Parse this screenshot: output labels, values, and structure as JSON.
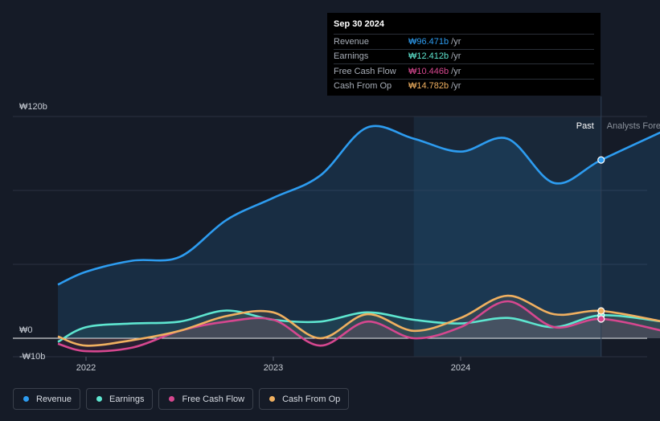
{
  "tooltip": {
    "date": "Sep 30 2024",
    "rows": [
      {
        "label": "Revenue",
        "value": "₩96.471b",
        "unit": "/yr",
        "color": "#2d9cf0"
      },
      {
        "label": "Earnings",
        "value": "₩12.412b",
        "unit": "/yr",
        "color": "#5ee6d0"
      },
      {
        "label": "Free Cash Flow",
        "value": "₩10.446b",
        "unit": "/yr",
        "color": "#d6478f"
      },
      {
        "label": "Cash From Op",
        "value": "₩14.782b",
        "unit": "/yr",
        "color": "#f0b060"
      }
    ]
  },
  "legend": [
    {
      "label": "Revenue",
      "color": "#2d9cf0"
    },
    {
      "label": "Earnings",
      "color": "#5ee6d0"
    },
    {
      "label": "Free Cash Flow",
      "color": "#d6478f"
    },
    {
      "label": "Cash From Op",
      "color": "#f0b060"
    }
  ],
  "chart_data": {
    "type": "line",
    "title": "",
    "xlabel": "",
    "ylabel": "",
    "y_unit": "KRW billions",
    "ylim": [
      -10,
      120
    ],
    "xlim": [
      2021.72,
      2025.08
    ],
    "y_tick_labels": [
      {
        "value": 120,
        "label": "₩120b"
      },
      {
        "value": 0,
        "label": "₩0"
      },
      {
        "value": -10,
        "label": "-₩10b"
      }
    ],
    "x_ticks": [
      {
        "value": 2022.0,
        "label": "2022"
      },
      {
        "value": 2023.0,
        "label": "2023"
      },
      {
        "value": 2024.0,
        "label": "2024"
      }
    ],
    "past_label": "Past",
    "forecast_label": "Analysts Forecasts",
    "highlight_start": 2023.75,
    "divider": 2024.75,
    "series": [
      {
        "name": "Revenue",
        "color": "#2d9cf0",
        "x": [
          2021.85,
          2022.0,
          2022.25,
          2022.5,
          2022.75,
          2023.0,
          2023.25,
          2023.5,
          2023.75,
          2024.0,
          2024.25,
          2024.5,
          2024.75,
          2025.08
        ],
        "y": [
          29,
          36,
          42,
          44,
          64,
          76,
          88,
          114,
          108,
          101,
          108,
          84,
          96.471,
          112
        ]
      },
      {
        "name": "Earnings",
        "color": "#5ee6d0",
        "x": [
          2021.85,
          2022.0,
          2022.25,
          2022.5,
          2022.75,
          2023.0,
          2023.25,
          2023.5,
          2023.75,
          2024.0,
          2024.25,
          2024.5,
          2024.75,
          2025.08
        ],
        "y": [
          -2,
          6,
          8,
          9,
          15,
          10,
          9,
          14,
          10,
          8,
          11,
          6,
          12.412,
          9
        ]
      },
      {
        "name": "Free Cash Flow",
        "color": "#d6478f",
        "x": [
          2021.85,
          2022.0,
          2022.25,
          2022.5,
          2022.75,
          2023.0,
          2023.25,
          2023.5,
          2023.75,
          2024.0,
          2024.25,
          2024.5,
          2024.75,
          2025.08
        ],
        "y": [
          -3,
          -7,
          -5,
          4,
          9,
          10,
          -4,
          9,
          0,
          6,
          20,
          6,
          10.446,
          4
        ]
      },
      {
        "name": "Cash From Op",
        "color": "#f0b060",
        "x": [
          2021.85,
          2022.0,
          2022.25,
          2022.5,
          2022.75,
          2023.0,
          2023.25,
          2023.5,
          2023.75,
          2024.0,
          2024.25,
          2024.5,
          2024.75,
          2025.08
        ],
        "y": [
          1,
          -4,
          -1,
          4,
          12,
          14,
          0,
          13,
          4,
          11,
          23,
          13,
          14.782,
          9
        ]
      }
    ]
  }
}
